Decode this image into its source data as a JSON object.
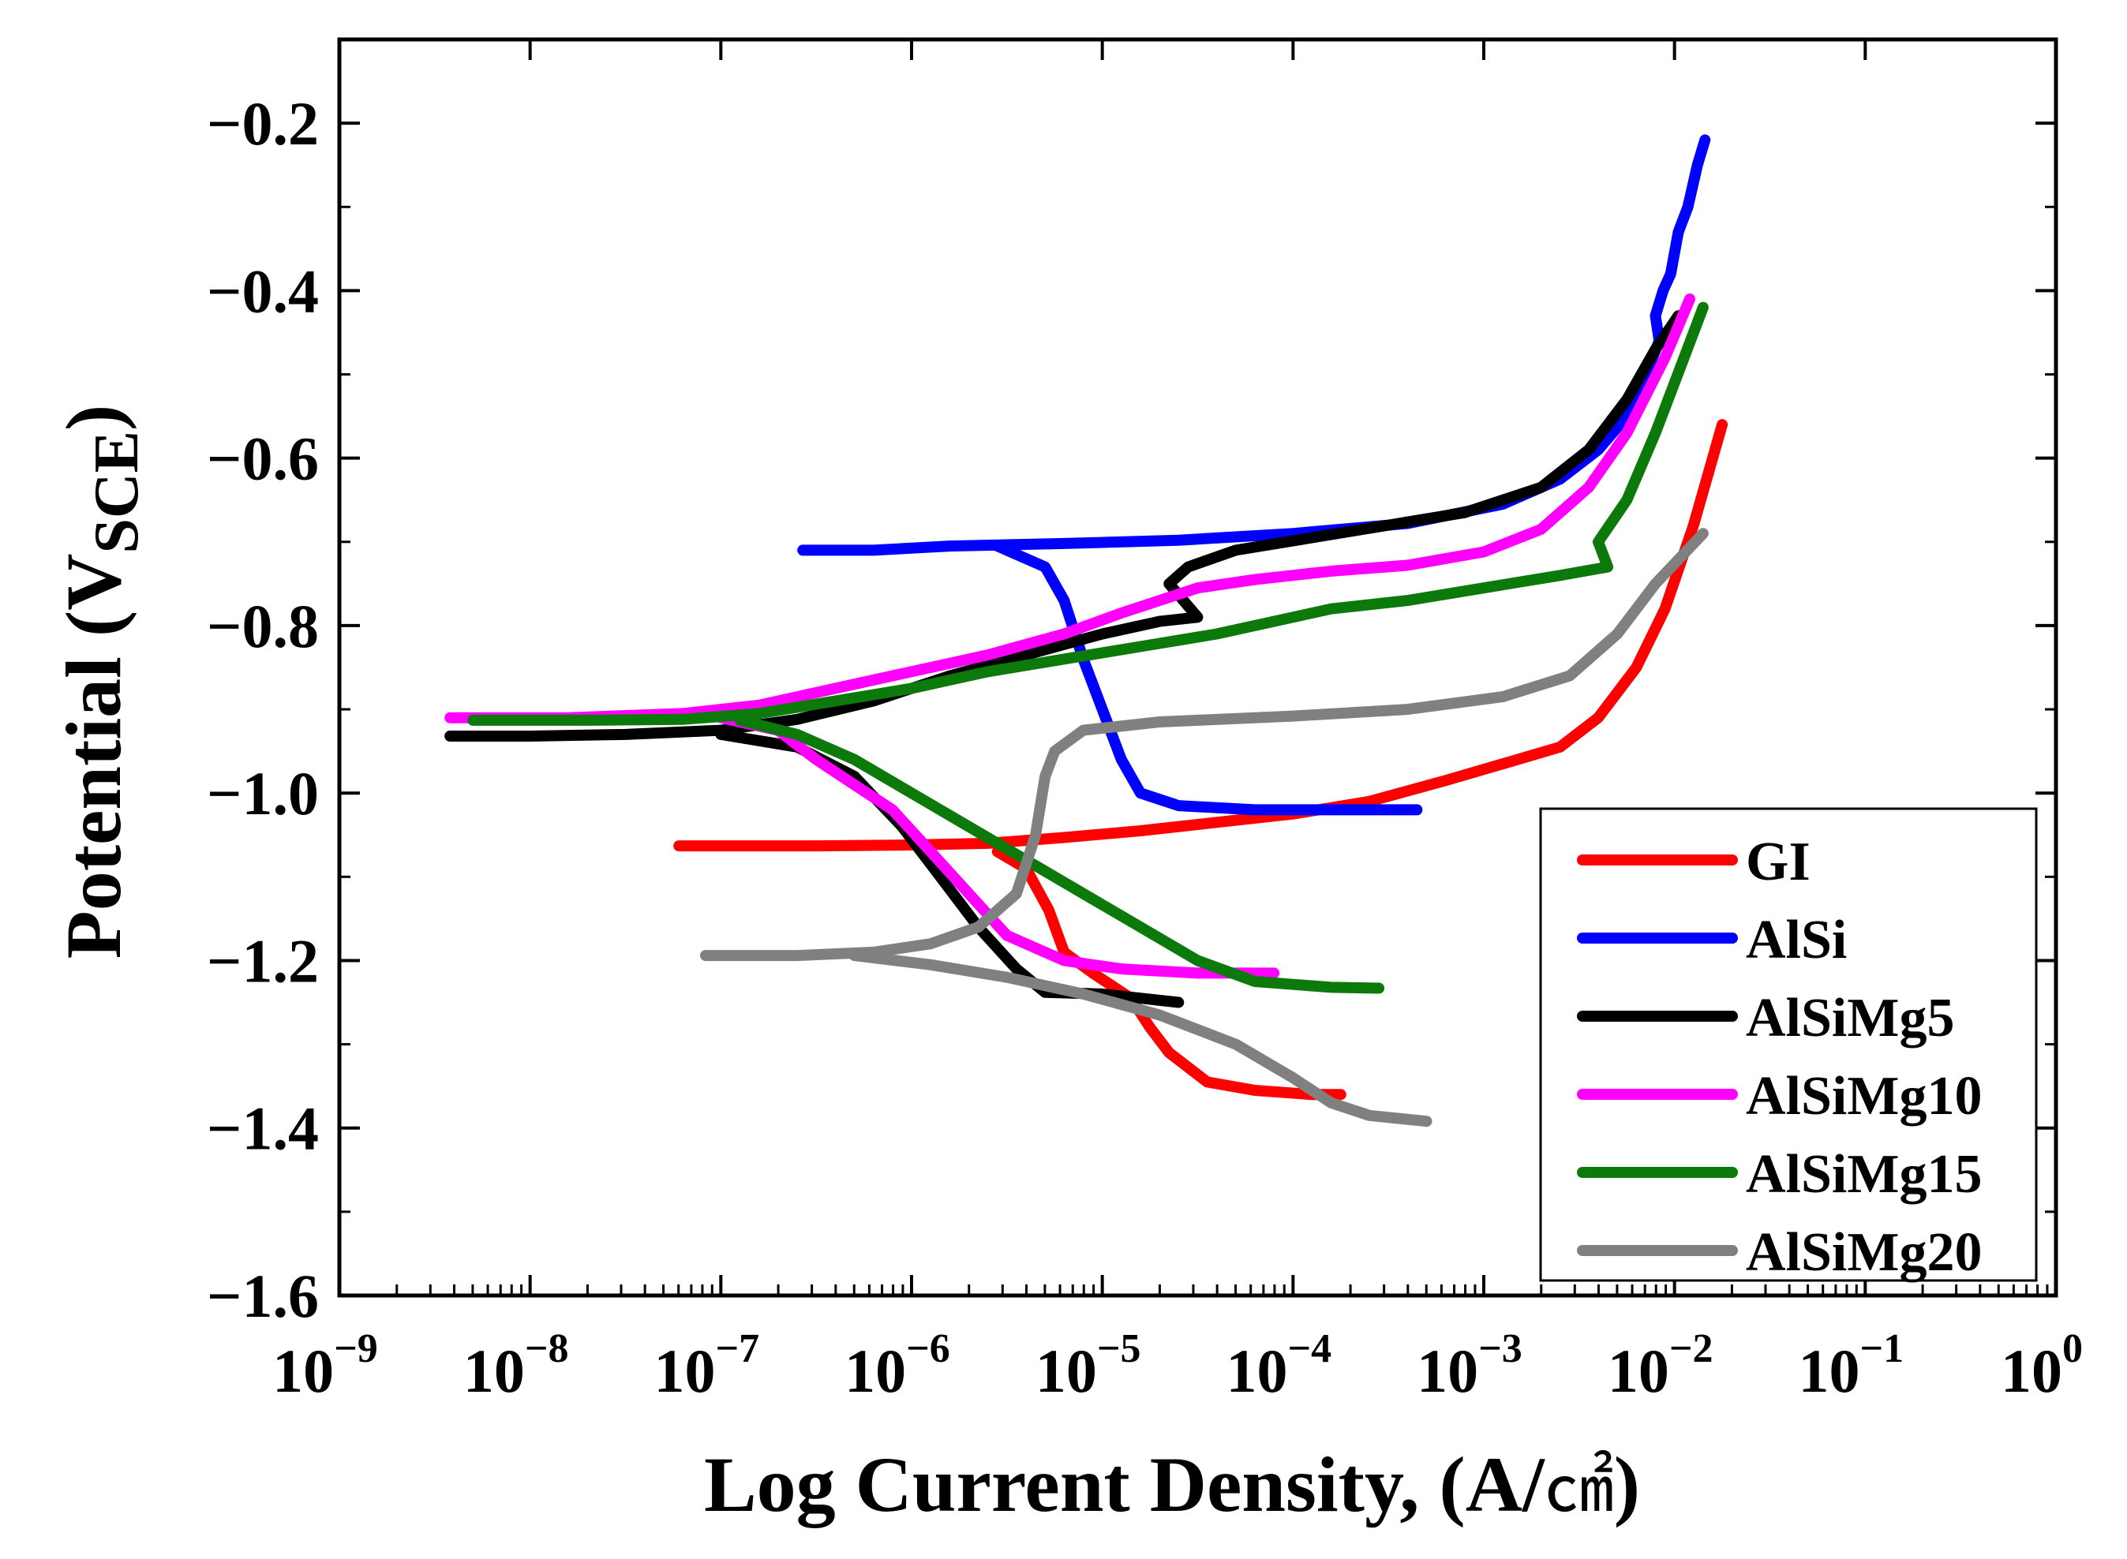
{
  "chart_data": {
    "type": "line",
    "title": "",
    "xlabel": "Log Current Density, (A/㎠)",
    "xlabel_main": "Log Current Density, (A/",
    "xlabel_unit": "㎠",
    "xlabel_close": ")",
    "ylabel": "Potential (VSCE)",
    "ylabel_main": "Potential (V",
    "ylabel_sub": "SCE",
    "ylabel_close": ")",
    "x_scale": "log",
    "xlim_exp": [
      -9,
      0
    ],
    "ylim": [
      -1.6,
      -0.1
    ],
    "x_ticks": [
      {
        "base": "10",
        "exp": "−9",
        "e": -9
      },
      {
        "base": "10",
        "exp": "−8",
        "e": -8
      },
      {
        "base": "10",
        "exp": "−7",
        "e": -7
      },
      {
        "base": "10",
        "exp": "−6",
        "e": -6
      },
      {
        "base": "10",
        "exp": "−5",
        "e": -5
      },
      {
        "base": "10",
        "exp": "−4",
        "e": -4
      },
      {
        "base": "10",
        "exp": "−3",
        "e": -3
      },
      {
        "base": "10",
        "exp": "−2",
        "e": -2
      },
      {
        "base": "10",
        "exp": "−1",
        "e": -1
      },
      {
        "base": "10",
        "exp": "0",
        "e": 0
      }
    ],
    "y_ticks": [
      {
        "label": "−0.2",
        "v": -0.2
      },
      {
        "label": "−0.4",
        "v": -0.4
      },
      {
        "label": "−0.6",
        "v": -0.6
      },
      {
        "label": "−0.8",
        "v": -0.8
      },
      {
        "label": "−1.0",
        "v": -1.0
      },
      {
        "label": "−1.2",
        "v": -1.2
      },
      {
        "label": "−1.4",
        "v": -1.4
      },
      {
        "label": "−1.6",
        "v": -1.6
      }
    ],
    "legend_position": "bottom-right",
    "series": [
      {
        "name": "GI",
        "color": "#ff0000",
        "points": [
          [
            -7.22,
            -1.063
          ],
          [
            -6.5,
            -1.063
          ],
          [
            -6.0,
            -1.062
          ],
          [
            -5.6,
            -1.06
          ],
          [
            -5.2,
            -1.053
          ],
          [
            -4.8,
            -1.045
          ],
          [
            -4.4,
            -1.035
          ],
          [
            -4.0,
            -1.025
          ],
          [
            -3.6,
            -1.01
          ],
          [
            -3.2,
            -0.985
          ],
          [
            -2.9,
            -0.965
          ],
          [
            -2.6,
            -0.945
          ],
          [
            -2.4,
            -0.91
          ],
          [
            -2.2,
            -0.85
          ],
          [
            -2.05,
            -0.78
          ],
          [
            -1.9,
            -0.68
          ],
          [
            -1.8,
            -0.6
          ],
          [
            -1.75,
            -0.56
          ]
        ],
        "points_cathodic": [
          [
            -5.55,
            -1.07
          ],
          [
            -5.4,
            -1.09
          ],
          [
            -5.28,
            -1.14
          ],
          [
            -5.2,
            -1.19
          ],
          [
            -5.05,
            -1.215
          ],
          [
            -4.85,
            -1.245
          ],
          [
            -4.75,
            -1.28
          ],
          [
            -4.65,
            -1.31
          ],
          [
            -4.45,
            -1.345
          ],
          [
            -4.2,
            -1.355
          ],
          [
            -3.9,
            -1.36
          ],
          [
            -3.75,
            -1.36
          ]
        ]
      },
      {
        "name": "AlSi",
        "color": "#0000ff",
        "points": [
          [
            -6.57,
            -0.71
          ],
          [
            -6.2,
            -0.71
          ],
          [
            -5.8,
            -0.705
          ],
          [
            -5.2,
            -0.702
          ],
          [
            -4.6,
            -0.698
          ],
          [
            -4.0,
            -0.69
          ],
          [
            -3.4,
            -0.678
          ],
          [
            -2.9,
            -0.655
          ],
          [
            -2.6,
            -0.625
          ],
          [
            -2.4,
            -0.59
          ],
          [
            -2.25,
            -0.55
          ],
          [
            -2.15,
            -0.5
          ],
          [
            -2.08,
            -0.46
          ],
          [
            -2.1,
            -0.43
          ],
          [
            -2.06,
            -0.4
          ],
          [
            -2.02,
            -0.38
          ],
          [
            -1.98,
            -0.33
          ],
          [
            -1.93,
            -0.3
          ],
          [
            -1.88,
            -0.25
          ],
          [
            -1.84,
            -0.22
          ]
        ],
        "points_cathodic": [
          [
            -5.55,
            -0.705
          ],
          [
            -5.3,
            -0.73
          ],
          [
            -5.2,
            -0.77
          ],
          [
            -5.1,
            -0.84
          ],
          [
            -5.0,
            -0.9
          ],
          [
            -4.9,
            -0.96
          ],
          [
            -4.8,
            -1.0
          ],
          [
            -4.6,
            -1.015
          ],
          [
            -4.2,
            -1.02
          ],
          [
            -3.7,
            -1.02
          ],
          [
            -3.35,
            -1.02
          ]
        ]
      },
      {
        "name": "AlSiMg5",
        "color": "#000000",
        "points": [
          [
            -8.42,
            -0.932
          ],
          [
            -8.0,
            -0.932
          ],
          [
            -7.5,
            -0.93
          ],
          [
            -7.0,
            -0.925
          ],
          [
            -6.6,
            -0.912
          ],
          [
            -6.2,
            -0.89
          ],
          [
            -5.8,
            -0.86
          ],
          [
            -5.4,
            -0.835
          ],
          [
            -5.0,
            -0.81
          ],
          [
            -4.7,
            -0.795
          ],
          [
            -4.5,
            -0.79
          ],
          [
            -4.65,
            -0.75
          ],
          [
            -4.55,
            -0.73
          ],
          [
            -4.3,
            -0.71
          ],
          [
            -3.9,
            -0.695
          ],
          [
            -3.5,
            -0.68
          ],
          [
            -3.1,
            -0.665
          ],
          [
            -2.7,
            -0.635
          ],
          [
            -2.45,
            -0.59
          ],
          [
            -2.25,
            -0.53
          ],
          [
            -2.1,
            -0.47
          ],
          [
            -1.98,
            -0.43
          ]
        ],
        "points_cathodic": [
          [
            -7.0,
            -0.93
          ],
          [
            -6.6,
            -0.945
          ],
          [
            -6.3,
            -0.98
          ],
          [
            -6.05,
            -1.04
          ],
          [
            -5.85,
            -1.1
          ],
          [
            -5.65,
            -1.16
          ],
          [
            -5.45,
            -1.21
          ],
          [
            -5.3,
            -1.238
          ],
          [
            -5.0,
            -1.24
          ],
          [
            -4.8,
            -1.245
          ],
          [
            -4.6,
            -1.25
          ]
        ]
      },
      {
        "name": "AlSiMg10",
        "color": "#ff00ff",
        "points": [
          [
            -8.42,
            -0.91
          ],
          [
            -7.8,
            -0.91
          ],
          [
            -7.2,
            -0.905
          ],
          [
            -6.8,
            -0.895
          ],
          [
            -6.4,
            -0.875
          ],
          [
            -6.0,
            -0.855
          ],
          [
            -5.6,
            -0.835
          ],
          [
            -5.2,
            -0.81
          ],
          [
            -4.9,
            -0.785
          ],
          [
            -4.7,
            -0.77
          ],
          [
            -4.5,
            -0.755
          ],
          [
            -4.2,
            -0.745
          ],
          [
            -3.8,
            -0.735
          ],
          [
            -3.4,
            -0.728
          ],
          [
            -3.0,
            -0.712
          ],
          [
            -2.7,
            -0.685
          ],
          [
            -2.45,
            -0.635
          ],
          [
            -2.25,
            -0.57
          ],
          [
            -2.05,
            -0.48
          ],
          [
            -1.92,
            -0.41
          ]
        ],
        "points_cathodic": [
          [
            -7.0,
            -0.91
          ],
          [
            -6.7,
            -0.925
          ],
          [
            -6.5,
            -0.96
          ],
          [
            -6.3,
            -0.99
          ],
          [
            -6.1,
            -1.02
          ],
          [
            -5.9,
            -1.07
          ],
          [
            -5.7,
            -1.12
          ],
          [
            -5.5,
            -1.17
          ],
          [
            -5.2,
            -1.2
          ],
          [
            -4.9,
            -1.21
          ],
          [
            -4.5,
            -1.215
          ],
          [
            -4.1,
            -1.215
          ]
        ]
      },
      {
        "name": "AlSiMg15",
        "color": "#0b7a0b",
        "points": [
          [
            -8.3,
            -0.913
          ],
          [
            -7.7,
            -0.913
          ],
          [
            -7.2,
            -0.912
          ],
          [
            -6.8,
            -0.905
          ],
          [
            -6.4,
            -0.89
          ],
          [
            -6.0,
            -0.875
          ],
          [
            -5.6,
            -0.855
          ],
          [
            -5.2,
            -0.84
          ],
          [
            -4.8,
            -0.825
          ],
          [
            -4.4,
            -0.81
          ],
          [
            -4.0,
            -0.79
          ],
          [
            -3.8,
            -0.78
          ],
          [
            -3.4,
            -0.77
          ],
          [
            -3.0,
            -0.755
          ],
          [
            -2.6,
            -0.74
          ],
          [
            -2.35,
            -0.73
          ],
          [
            -2.4,
            -0.7
          ],
          [
            -2.25,
            -0.65
          ],
          [
            -2.1,
            -0.57
          ],
          [
            -1.95,
            -0.48
          ],
          [
            -1.85,
            -0.42
          ]
        ],
        "points_cathodic": [
          [
            -6.9,
            -0.913
          ],
          [
            -6.6,
            -0.93
          ],
          [
            -6.3,
            -0.96
          ],
          [
            -6.0,
            -1.0
          ],
          [
            -5.7,
            -1.04
          ],
          [
            -5.4,
            -1.08
          ],
          [
            -5.1,
            -1.12
          ],
          [
            -4.8,
            -1.16
          ],
          [
            -4.5,
            -1.2
          ],
          [
            -4.2,
            -1.225
          ],
          [
            -3.8,
            -1.232
          ],
          [
            -3.55,
            -1.233
          ]
        ]
      },
      {
        "name": "AlSiMg20",
        "color": "#808080",
        "points": [
          [
            -7.08,
            -1.194
          ],
          [
            -6.6,
            -1.194
          ],
          [
            -6.2,
            -1.19
          ],
          [
            -5.9,
            -1.18
          ],
          [
            -5.65,
            -1.16
          ],
          [
            -5.45,
            -1.12
          ],
          [
            -5.35,
            -1.05
          ],
          [
            -5.3,
            -0.98
          ],
          [
            -5.25,
            -0.95
          ],
          [
            -5.1,
            -0.925
          ],
          [
            -4.7,
            -0.915
          ],
          [
            -4.0,
            -0.908
          ],
          [
            -3.4,
            -0.9
          ],
          [
            -2.9,
            -0.885
          ],
          [
            -2.55,
            -0.86
          ],
          [
            -2.3,
            -0.81
          ],
          [
            -2.1,
            -0.75
          ],
          [
            -1.85,
            -0.69
          ]
        ],
        "points_cathodic": [
          [
            -6.3,
            -1.194
          ],
          [
            -5.9,
            -1.205
          ],
          [
            -5.5,
            -1.22
          ],
          [
            -5.1,
            -1.24
          ],
          [
            -4.7,
            -1.265
          ],
          [
            -4.3,
            -1.3
          ],
          [
            -4.0,
            -1.34
          ],
          [
            -3.8,
            -1.37
          ],
          [
            -3.6,
            -1.385
          ],
          [
            -3.3,
            -1.392
          ]
        ]
      }
    ]
  }
}
